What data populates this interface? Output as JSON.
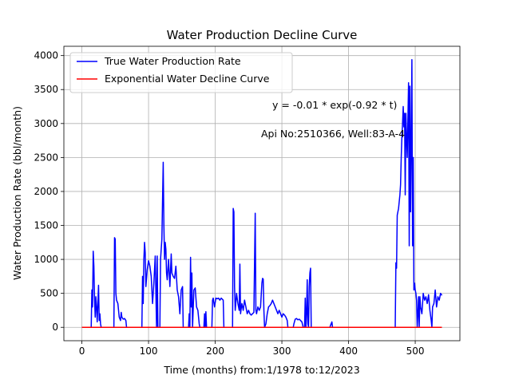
{
  "chart_data": {
    "type": "line",
    "title": "Water Production Decline Curve",
    "xlabel": "Time (months) from:1/1978 to:12/2023",
    "ylabel": "Water Production Rate (bbl/month)",
    "annotations": [
      "y = -0.01 * exp(-0.92 * t)",
      "Api No:2510366, Well:83-A-4"
    ],
    "xlim": [
      -27,
      567
    ],
    "ylim": [
      -197,
      4137
    ],
    "xticks": [
      0,
      100,
      200,
      300,
      400,
      500
    ],
    "yticks": [
      0,
      500,
      1000,
      1500,
      2000,
      2500,
      3000,
      3500,
      4000
    ],
    "grid": true,
    "legend": "upper left",
    "series": [
      {
        "name": "True Water Production Rate",
        "color": "#0000ff",
        "x": [
          0,
          14,
          15,
          16,
          17,
          18,
          19,
          20,
          21,
          22,
          23,
          24,
          25,
          26,
          27,
          28,
          29,
          48,
          49,
          50,
          51,
          52,
          54,
          56,
          58,
          59,
          60,
          62,
          64,
          66,
          67,
          90,
          91,
          92,
          93,
          94,
          95,
          96,
          98,
          100,
          102,
          104,
          106,
          108,
          110,
          112,
          113,
          114,
          117,
          118,
          120,
          122,
          123,
          124,
          125,
          126,
          127,
          128,
          130,
          132,
          134,
          135,
          137,
          139,
          141,
          143,
          145,
          147,
          149,
          151,
          152,
          160,
          161,
          162,
          163,
          164,
          165,
          166,
          168,
          170,
          172,
          174,
          176,
          177,
          183,
          184,
          185,
          186,
          187,
          188,
          195,
          196,
          197,
          199,
          201,
          203,
          205,
          207,
          209,
          212,
          213,
          226,
          227,
          228,
          229,
          230,
          232,
          234,
          236,
          237,
          238,
          240,
          242,
          244,
          246,
          248,
          250,
          252,
          254,
          256,
          258,
          260,
          261,
          262,
          264,
          266,
          268,
          270,
          271,
          272,
          273,
          274,
          276,
          278,
          280,
          282,
          284,
          286,
          288,
          290,
          292,
          294,
          296,
          298,
          300,
          302,
          304,
          306,
          308,
          309,
          317,
          318,
          320,
          322,
          324,
          326,
          328,
          330,
          332,
          334,
          335,
          336,
          337,
          338,
          339,
          340,
          341,
          342,
          343,
          344,
          345,
          372,
          373,
          375,
          376,
          378,
          470,
          471,
          472,
          473,
          474,
          475,
          476,
          477,
          478,
          479,
          480,
          481,
          482,
          483,
          484,
          485,
          486,
          487,
          488,
          489,
          490,
          491,
          492,
          493,
          494,
          495,
          496,
          497,
          498,
          499,
          500,
          501,
          502,
          503,
          504,
          505,
          506,
          507,
          508,
          510,
          512,
          514,
          516,
          518,
          520,
          522,
          524,
          525,
          526,
          528,
          530,
          532,
          534,
          536,
          538,
          540
        ],
        "values": [
          0,
          0,
          550,
          300,
          1120,
          900,
          420,
          150,
          450,
          300,
          80,
          350,
          620,
          100,
          200,
          50,
          0,
          0,
          1320,
          1300,
          500,
          400,
          350,
          150,
          100,
          220,
          150,
          120,
          130,
          100,
          0,
          0,
          750,
          350,
          1000,
          1250,
          1100,
          600,
          850,
          980,
          900,
          750,
          350,
          650,
          1050,
          0,
          1050,
          0,
          0,
          1000,
          1300,
          2430,
          1500,
          1000,
          1250,
          1150,
          800,
          700,
          1000,
          600,
          1080,
          800,
          750,
          720,
          900,
          550,
          450,
          200,
          550,
          600,
          0,
          0,
          200,
          0,
          1030,
          300,
          800,
          0,
          550,
          580,
          300,
          250,
          50,
          0,
          0,
          200,
          0,
          230,
          0,
          0,
          0,
          400,
          430,
          300,
          430,
          420,
          430,
          400,
          430,
          400,
          0,
          0,
          1750,
          1700,
          600,
          250,
          500,
          350,
          250,
          930,
          200,
          350,
          250,
          400,
          300,
          200,
          250,
          200,
          180,
          200,
          220,
          1680,
          250,
          200,
          300,
          250,
          300,
          650,
          720,
          710,
          250,
          0,
          50,
          200,
          300,
          320,
          350,
          400,
          350,
          300,
          250,
          200,
          250,
          200,
          150,
          200,
          180,
          150,
          100,
          0,
          0,
          50,
          120,
          130,
          110,
          120,
          100,
          80,
          0,
          0,
          430,
          0,
          200,
          700,
          50,
          0,
          600,
          800,
          870,
          0,
          0,
          0,
          30,
          80,
          0,
          0,
          0,
          950,
          870,
          1650,
          1700,
          1750,
          1850,
          1950,
          2100,
          2500,
          2800,
          3000,
          3250,
          2950,
          3150,
          1950,
          3150,
          2800,
          2500,
          3050,
          3600,
          1200,
          3550,
          1700,
          2700,
          3940,
          1200,
          2500,
          550,
          650,
          550,
          500,
          400,
          0,
          200,
          450,
          0,
          450,
          300,
          200,
          500,
          400,
          450,
          350,
          480,
          250,
          100,
          0,
          300,
          350,
          550,
          300,
          450,
          400,
          500,
          470
        ]
      },
      {
        "name": "Exponential Water Decline Curve",
        "color": "#ff0000",
        "x": [
          0,
          540
        ],
        "values": [
          -0.01,
          0
        ]
      }
    ]
  }
}
